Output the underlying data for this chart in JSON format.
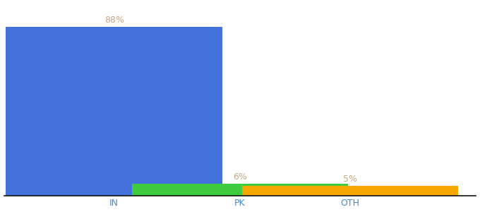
{
  "categories": [
    "IN",
    "PK",
    "OTH"
  ],
  "values": [
    88,
    6,
    5
  ],
  "labels": [
    "88%",
    "6%",
    "5%"
  ],
  "bar_colors": [
    "#4472db",
    "#3dcc3d",
    "#f5a800"
  ],
  "background_color": "#ffffff",
  "label_color": "#c8a882",
  "xlabel_color": "#4488cc",
  "ylim": [
    0,
    100
  ],
  "bar_width": 0.55,
  "label_fontsize": 9,
  "xlabel_fontsize": 9,
  "x_positions": [
    0.18,
    0.5,
    0.78
  ]
}
